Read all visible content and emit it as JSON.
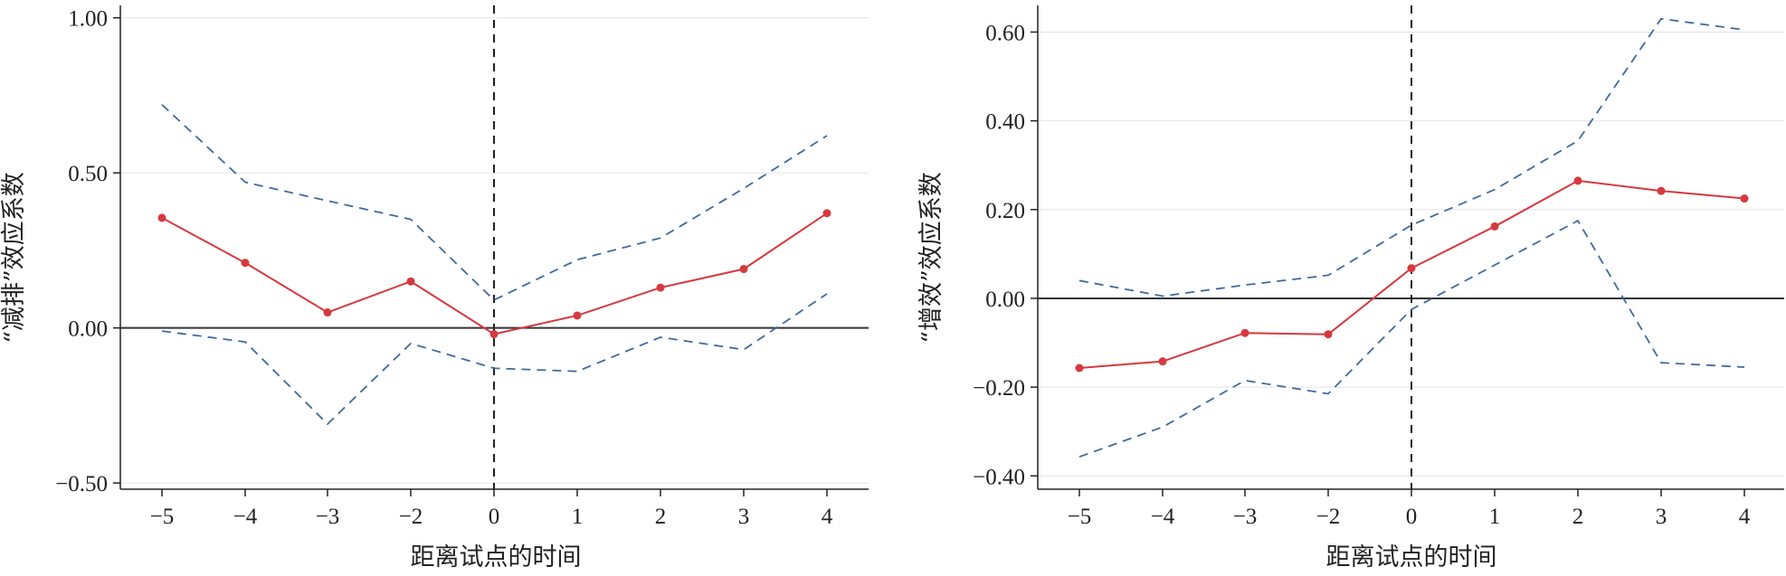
{
  "chart_data": [
    {
      "type": "line",
      "xlabel": "距离试点的时间",
      "ylabel": "“减排”效应系数",
      "x": [
        -5,
        -4,
        -3,
        -2,
        0,
        1,
        2,
        3,
        4
      ],
      "xticks": [
        "−5",
        "−4",
        "−3",
        "−2",
        "0",
        "1",
        "2",
        "3",
        "4"
      ],
      "ylim": [
        -0.52,
        1.04
      ],
      "yticks": [
        -0.5,
        0.0,
        0.5,
        1.0
      ],
      "ytick_labels": [
        "−0.50",
        "0.00",
        "0.50",
        "1.00"
      ],
      "reference_lines": {
        "horizontal_y": 0,
        "vertical_x": 0
      },
      "grid": "horizontal",
      "series": [
        {
          "role": "estimate",
          "style": "solid-with-markers",
          "color": "#d6393f",
          "values": [
            0.355,
            0.21,
            0.05,
            0.15,
            -0.02,
            0.04,
            0.13,
            0.19,
            0.37
          ]
        },
        {
          "role": "upper-bound",
          "style": "dashed",
          "color": "#3f6a9c",
          "values": [
            0.72,
            0.47,
            0.41,
            0.35,
            0.09,
            0.22,
            0.29,
            0.45,
            0.62
          ]
        },
        {
          "role": "lower-bound",
          "style": "dashed",
          "color": "#3f6a9c",
          "values": [
            -0.01,
            -0.045,
            -0.31,
            -0.05,
            -0.13,
            -0.14,
            -0.03,
            -0.07,
            0.11
          ]
        }
      ]
    },
    {
      "type": "line",
      "xlabel": "距离试点的时间",
      "ylabel": "“增效”效应系数",
      "x": [
        -5,
        -4,
        -3,
        -2,
        0,
        1,
        2,
        3,
        4
      ],
      "xticks": [
        "−5",
        "−4",
        "−3",
        "−2",
        "0",
        "1",
        "2",
        "3",
        "4"
      ],
      "ylim": [
        -0.43,
        0.66
      ],
      "yticks": [
        -0.4,
        -0.2,
        0.0,
        0.2,
        0.4,
        0.6
      ],
      "ytick_labels": [
        "−0.40",
        "−0.20",
        "0.00",
        "0.20",
        "0.40",
        "0.60"
      ],
      "reference_lines": {
        "horizontal_y": 0,
        "vertical_x": 0
      },
      "grid": "horizontal",
      "series": [
        {
          "role": "estimate",
          "style": "solid-with-markers",
          "color": "#d6393f",
          "values": [
            -0.157,
            -0.142,
            -0.078,
            -0.081,
            0.068,
            0.162,
            0.265,
            0.242,
            0.225
          ]
        },
        {
          "role": "upper-bound",
          "style": "dashed",
          "color": "#3f6a9c",
          "values": [
            0.04,
            0.005,
            0.03,
            0.052,
            0.165,
            0.245,
            0.355,
            0.63,
            0.605
          ]
        },
        {
          "role": "lower-bound",
          "style": "dashed",
          "color": "#3f6a9c",
          "values": [
            -0.357,
            -0.29,
            -0.185,
            -0.215,
            -0.025,
            0.075,
            0.175,
            -0.145,
            -0.155
          ]
        }
      ]
    }
  ]
}
